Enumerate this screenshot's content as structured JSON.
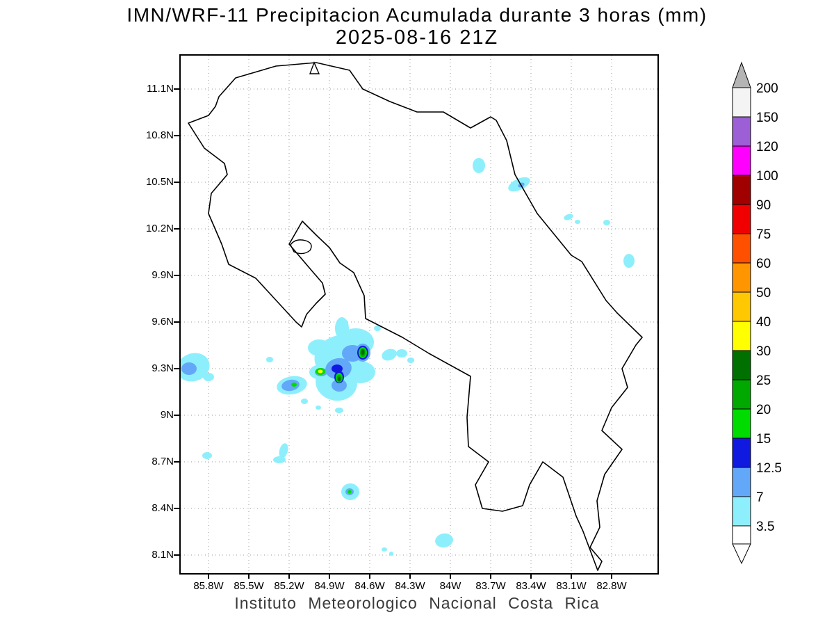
{
  "title": {
    "line1": "IMN/WRF-11 Precipitacion Acumulada durante 3 horas (mm)",
    "line2": "2025-08-16 21Z"
  },
  "footer": "Instituto Meteorologico Nacional Costa Rica",
  "map": {
    "lat_ticks": [
      "11.1N",
      "10.8N",
      "10.5N",
      "10.2N",
      "9.9N",
      "9.6N",
      "9.3N",
      "9N",
      "8.7N",
      "8.4N",
      "8.1N"
    ],
    "lon_ticks": [
      "85.8W",
      "85.5W",
      "85.2W",
      "84.9W",
      "84.6W",
      "84.3W",
      "84W",
      "83.7W",
      "83.4W",
      "83.1W",
      "82.8W"
    ],
    "precip_palette": [
      "#8EEFFC",
      "#63A8F8",
      "#1019E0",
      "#00DC00",
      "#00A800",
      "#007000",
      "#FFFF00"
    ],
    "precip_levels_mm": [
      3.5,
      7,
      12.5,
      15,
      20,
      25,
      30
    ],
    "precip_blobs": [
      [
        1,
        18,
        448,
        24,
        20,
        -20
      ],
      [
        1,
        40,
        462,
        8,
        6,
        0
      ],
      [
        1,
        128,
        437,
        5,
        4,
        0
      ],
      [
        1,
        160,
        474,
        22,
        13,
        -10
      ],
      [
        1,
        202,
        455,
        17,
        11,
        0
      ],
      [
        1,
        230,
        432,
        38,
        30,
        -15
      ],
      [
        1,
        252,
        412,
        26,
        20,
        0
      ],
      [
        1,
        224,
        470,
        30,
        26,
        10
      ],
      [
        1,
        258,
        455,
        22,
        16,
        0
      ],
      [
        1,
        199,
        420,
        16,
        12,
        0
      ],
      [
        1,
        232,
        392,
        10,
        16,
        0
      ],
      [
        1,
        283,
        392,
        5,
        4,
        0
      ],
      [
        1,
        300,
        430,
        11,
        8,
        -20
      ],
      [
        1,
        318,
        428,
        8,
        6,
        0
      ],
      [
        1,
        331,
        438,
        5,
        4,
        0
      ],
      [
        1,
        178,
        497,
        5,
        4,
        0
      ],
      [
        1,
        198,
        506,
        4,
        3,
        0
      ],
      [
        1,
        228,
        510,
        6,
        4,
        0
      ],
      [
        1,
        148,
        568,
        6,
        11,
        15
      ],
      [
        1,
        142,
        581,
        9,
        5,
        0
      ],
      [
        1,
        38,
        575,
        7,
        5,
        0
      ],
      [
        1,
        244,
        627,
        13,
        12,
        0
      ],
      [
        1,
        379,
        697,
        13,
        10,
        -10
      ],
      [
        1,
        293,
        710,
        4,
        3,
        0
      ],
      [
        1,
        303,
        716,
        3,
        3,
        0
      ],
      [
        1,
        429,
        158,
        9,
        11,
        0
      ],
      [
        1,
        487,
        185,
        17,
        8,
        -25
      ],
      [
        1,
        558,
        232,
        7,
        4,
        -20
      ],
      [
        1,
        571,
        239,
        4,
        3,
        0
      ],
      [
        1,
        613,
        240,
        5,
        4,
        0
      ],
      [
        1,
        645,
        295,
        8,
        10,
        0
      ],
      [
        2,
        12,
        450,
        11,
        9,
        0
      ],
      [
        2,
        158,
        474,
        13,
        8,
        -10
      ],
      [
        2,
        202,
        455,
        9,
        6,
        0
      ],
      [
        2,
        227,
        450,
        19,
        15,
        -10
      ],
      [
        2,
        247,
        428,
        15,
        12,
        0
      ],
      [
        2,
        228,
        474,
        11,
        9,
        0
      ],
      [
        2,
        262,
        427,
        11,
        13,
        0
      ],
      [
        2,
        243,
        627,
        6,
        5,
        0
      ],
      [
        2,
        490,
        186,
        5,
        3,
        -25
      ],
      [
        3,
        225,
        450,
        8,
        6,
        0
      ],
      [
        3,
        228,
        462,
        7,
        9,
        0
      ],
      [
        3,
        262,
        427,
        8,
        10,
        0
      ],
      [
        4,
        262,
        427,
        6,
        8,
        0
      ],
      [
        4,
        228,
        463,
        5,
        7,
        0
      ],
      [
        4,
        163,
        473,
        4,
        3,
        0
      ],
      [
        4,
        201,
        454,
        7,
        5,
        0
      ],
      [
        4,
        243,
        627,
        2.5,
        2.5,
        0
      ],
      [
        5,
        262,
        427,
        4,
        6,
        0
      ],
      [
        5,
        228,
        464,
        3.5,
        5,
        0
      ],
      [
        6,
        262,
        426,
        2.5,
        4,
        0
      ],
      [
        6,
        228,
        465,
        2,
        3,
        0
      ],
      [
        7,
        201,
        454,
        3.5,
        2.5,
        0
      ]
    ]
  },
  "colorbar": {
    "arrow_top_color": "#B4B4B4",
    "arrow_bottom_color": "#FFFFFF",
    "segments": [
      {
        "label": "200",
        "color": "#F4F4F4"
      },
      {
        "label": "150",
        "color": "#9C5FD6"
      },
      {
        "label": "120",
        "color": "#FF00FF"
      },
      {
        "label": "100",
        "color": "#A00000"
      },
      {
        "label": "90",
        "color": "#F00000"
      },
      {
        "label": "75",
        "color": "#FF5000"
      },
      {
        "label": "60",
        "color": "#FF9600"
      },
      {
        "label": "50",
        "color": "#FFC800"
      },
      {
        "label": "40",
        "color": "#FFFF00"
      },
      {
        "label": "30",
        "color": "#007000"
      },
      {
        "label": "25",
        "color": "#00A800"
      },
      {
        "label": "20",
        "color": "#00DC00"
      },
      {
        "label": "15",
        "color": "#1019E0"
      },
      {
        "label": "12.5",
        "color": "#63A8F8"
      },
      {
        "label": "7",
        "color": "#8EEFFC"
      },
      {
        "label": "3.5",
        "color": "#FFFFFF"
      }
    ]
  }
}
